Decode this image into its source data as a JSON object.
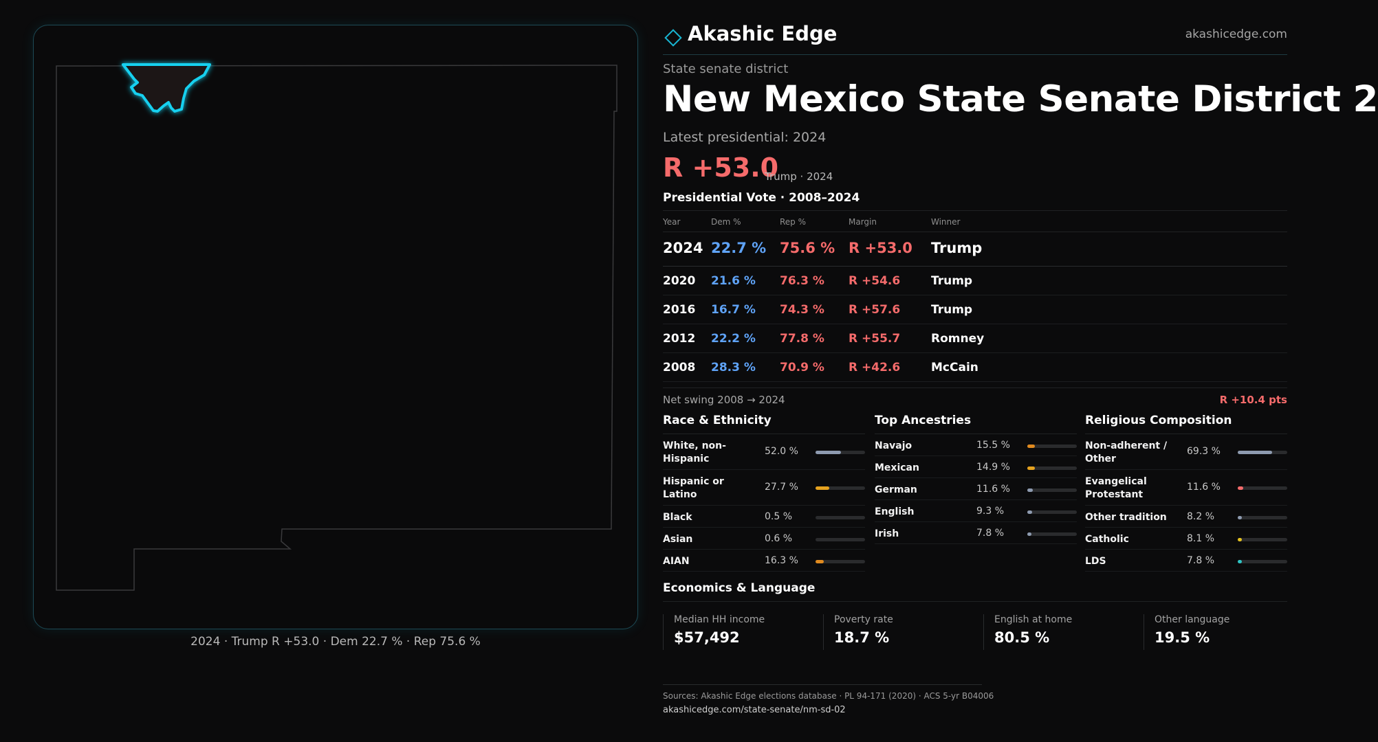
{
  "map": {
    "caption": "2024 · Trump R +53.0 · Dem 22.7 % · Rep 75.6 %",
    "outline_color": "#3a3a3c",
    "district_color": "#19d0ef",
    "district_fill": "#1e1214"
  },
  "brand": {
    "name": "Akashic Edge",
    "url": "akashicedge.com",
    "accent": "#19b6d2"
  },
  "header": {
    "kicker": "State senate district",
    "title": "New Mexico State Senate District 2",
    "latest_label": "Latest presidential: 2024",
    "margin": "R +53.0",
    "margin_sub": "Trump · 2024"
  },
  "presidential": {
    "title": "Presidential Vote · 2008–2024",
    "columns": [
      "Year",
      "Dem %",
      "Rep %",
      "Margin",
      "Winner"
    ],
    "rows": [
      {
        "year": "2024",
        "dem": "22.7 %",
        "rep": "75.6 %",
        "margin": "R +53.0",
        "winner": "Trump"
      },
      {
        "year": "2020",
        "dem": "21.6 %",
        "rep": "76.3 %",
        "margin": "R +54.6",
        "winner": "Trump"
      },
      {
        "year": "2016",
        "dem": "16.7 %",
        "rep": "74.3 %",
        "margin": "R +57.6",
        "winner": "Trump"
      },
      {
        "year": "2012",
        "dem": "22.2 %",
        "rep": "77.8 %",
        "margin": "R +55.7",
        "winner": "Romney"
      },
      {
        "year": "2008",
        "dem": "28.3 %",
        "rep": "70.9 %",
        "margin": "R +42.6",
        "winner": "McCain"
      }
    ],
    "swing_label": "Net swing 2008 → 2024",
    "swing_value": "R +10.4 pts",
    "dem_color": "#5fa3f7",
    "rep_color": "#f56b6b"
  },
  "race": {
    "title": "Race & Ethnicity",
    "rows": [
      {
        "label": "White, non-Hispanic",
        "pct": "52.0 %",
        "value": 52.0,
        "color": "#8e9bb0"
      },
      {
        "label": "Hispanic or Latino",
        "pct": "27.7 %",
        "value": 27.7,
        "color": "#e5a21f"
      },
      {
        "label": "Black",
        "pct": "0.5 %",
        "value": 0.5,
        "color": "#8e9bb0"
      },
      {
        "label": "Asian",
        "pct": "0.6 %",
        "value": 0.6,
        "color": "#8e9bb0"
      },
      {
        "label": "AIAN",
        "pct": "16.3 %",
        "value": 16.3,
        "color": "#e08a1f"
      }
    ]
  },
  "ancestry": {
    "title": "Top Ancestries",
    "rows": [
      {
        "label": "Navajo",
        "pct": "15.5 %",
        "value": 15.5,
        "color": "#e08a1f"
      },
      {
        "label": "Mexican",
        "pct": "14.9 %",
        "value": 14.9,
        "color": "#e5a21f"
      },
      {
        "label": "German",
        "pct": "11.6 %",
        "value": 11.6,
        "color": "#8e9bb0"
      },
      {
        "label": "English",
        "pct": "9.3 %",
        "value": 9.3,
        "color": "#8e9bb0"
      },
      {
        "label": "Irish",
        "pct": "7.8 %",
        "value": 7.8,
        "color": "#8e9bb0"
      }
    ]
  },
  "religion": {
    "title": "Religious Composition",
    "rows": [
      {
        "label": "Non-adherent / Other",
        "pct": "69.3 %",
        "value": 69.3,
        "color": "#8e9bb0"
      },
      {
        "label": "Evangelical Protestant",
        "pct": "11.6 %",
        "value": 11.6,
        "color": "#f56b6b"
      },
      {
        "label": "Other tradition",
        "pct": "8.2 %",
        "value": 8.2,
        "color": "#8e9bb0"
      },
      {
        "label": "Catholic",
        "pct": "8.1 %",
        "value": 8.1,
        "color": "#e5c21f"
      },
      {
        "label": "LDS",
        "pct": "7.8 %",
        "value": 7.8,
        "color": "#2ec4c4"
      }
    ]
  },
  "economics": {
    "title": "Economics & Language",
    "cards": [
      {
        "label": "Median HH income",
        "value": "$57,492"
      },
      {
        "label": "Poverty rate",
        "value": "18.7 %"
      },
      {
        "label": "English at home",
        "value": "80.5 %"
      },
      {
        "label": "Other language",
        "value": "19.5 %"
      }
    ]
  },
  "footer": {
    "sources": "Sources: Akashic Edge elections database · PL 94-171 (2020) · ACS 5-yr B04006",
    "url": "akashicedge.com/state-senate/nm-sd-02"
  }
}
